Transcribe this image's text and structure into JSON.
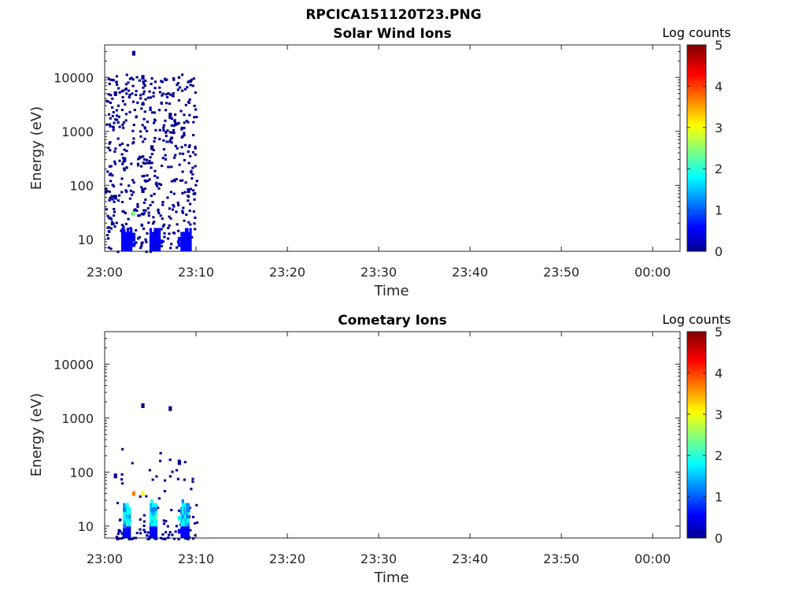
{
  "figure": {
    "title": "RPCICA151120T23.PNG"
  },
  "chart_data": [
    {
      "type": "heatmap",
      "title": "Solar Wind Ions",
      "xlabel": "Time",
      "ylabel": "Energy (eV)",
      "x_scale": "time",
      "y_scale": "log",
      "xlim": [
        "23:00",
        "00:03"
      ],
      "ylim": [
        6,
        40000
      ],
      "x_ticks": [
        "23:00",
        "23:10",
        "23:20",
        "23:30",
        "23:40",
        "23:50",
        "00:00"
      ],
      "y_ticks": [
        "10",
        "100",
        "1000",
        "10000"
      ],
      "colorbar": {
        "label": "Log counts",
        "range": [
          0,
          5
        ],
        "ticks": [
          "0",
          "1",
          "2",
          "3",
          "4",
          "5"
        ]
      },
      "data_time_range": [
        "23:00",
        "23:10"
      ],
      "points": [
        {
          "t": "23:02",
          "e": 8,
          "c": 0.5
        },
        {
          "t": "23:02",
          "e": 9,
          "c": 0.6
        },
        {
          "t": "23:02",
          "e": 10,
          "c": 0.5
        },
        {
          "t": "23:02",
          "e": 12,
          "c": 0.4
        },
        {
          "t": "23:03",
          "e": 8,
          "c": 0.4
        },
        {
          "t": "23:03",
          "e": 10,
          "c": 0.5
        },
        {
          "t": "23:03",
          "e": 12,
          "c": 0.4
        },
        {
          "t": "23:03",
          "e": 30,
          "c": 2.5
        },
        {
          "t": "23:05",
          "e": 8,
          "c": 0.5
        },
        {
          "t": "23:05",
          "e": 10,
          "c": 0.6
        },
        {
          "t": "23:05",
          "e": 12,
          "c": 0.5
        },
        {
          "t": "23:06",
          "e": 9,
          "c": 0.5
        },
        {
          "t": "23:08",
          "e": 8,
          "c": 0.5
        },
        {
          "t": "23:08",
          "e": 10,
          "c": 0.6
        },
        {
          "t": "23:09",
          "e": 9,
          "c": 0.5
        },
        {
          "t": "23:09",
          "e": 12,
          "c": 0.4
        },
        {
          "t": "23:01",
          "e": 60,
          "c": 0.2
        },
        {
          "t": "23:04",
          "e": 80,
          "c": 0.2
        },
        {
          "t": "23:09",
          "e": 80,
          "c": 0.3
        },
        {
          "t": "23:02",
          "e": 300,
          "c": 0.1
        },
        {
          "t": "23:05",
          "e": 500,
          "c": 0.1
        },
        {
          "t": "23:07",
          "e": 2000,
          "c": 0.1
        },
        {
          "t": "23:01",
          "e": 5000,
          "c": 0.1
        },
        {
          "t": "23:04",
          "e": 10000,
          "c": 0.1
        },
        {
          "t": "23:03",
          "e": 28000,
          "c": 0.1
        }
      ]
    },
    {
      "type": "heatmap",
      "title": "Cometary Ions",
      "xlabel": "Time",
      "ylabel": "Energy (eV)",
      "x_scale": "time",
      "y_scale": "log",
      "xlim": [
        "23:00",
        "00:03"
      ],
      "ylim": [
        6,
        40000
      ],
      "x_ticks": [
        "23:00",
        "23:10",
        "23:20",
        "23:30",
        "23:40",
        "23:50",
        "00:00"
      ],
      "y_ticks": [
        "10",
        "100",
        "1000",
        "10000"
      ],
      "colorbar": {
        "label": "Log counts",
        "range": [
          0,
          5
        ],
        "ticks": [
          "0",
          "1",
          "2",
          "3",
          "4",
          "5"
        ]
      },
      "data_time_range": [
        "23:01",
        "23:10"
      ],
      "points": [
        {
          "t": "23:02",
          "e": 8,
          "c": 0.6
        },
        {
          "t": "23:02",
          "e": 10,
          "c": 1.5
        },
        {
          "t": "23:02",
          "e": 14,
          "c": 2.0
        },
        {
          "t": "23:02",
          "e": 20,
          "c": 1.5
        },
        {
          "t": "23:03",
          "e": 40,
          "c": 3.7
        },
        {
          "t": "23:04",
          "e": 40,
          "c": 3.2
        },
        {
          "t": "23:05",
          "e": 8,
          "c": 0.6
        },
        {
          "t": "23:05",
          "e": 14,
          "c": 2.0
        },
        {
          "t": "23:05",
          "e": 20,
          "c": 1.2
        },
        {
          "t": "23:08",
          "e": 8,
          "c": 0.7
        },
        {
          "t": "23:08",
          "e": 14,
          "c": 1.8
        },
        {
          "t": "23:09",
          "e": 20,
          "c": 1.5
        },
        {
          "t": "23:01",
          "e": 85,
          "c": 0.2
        },
        {
          "t": "23:08",
          "e": 150,
          "c": 0.2
        },
        {
          "t": "23:04",
          "e": 1700,
          "c": 0.1
        },
        {
          "t": "23:07",
          "e": 1500,
          "c": 0.1
        }
      ]
    }
  ],
  "colors": {
    "colormap": [
      "#00008f",
      "#0000ff",
      "#0080ff",
      "#00ffff",
      "#80ff80",
      "#ffff00",
      "#ff8000",
      "#ff0000",
      "#800000"
    ],
    "axis": "#262626"
  }
}
